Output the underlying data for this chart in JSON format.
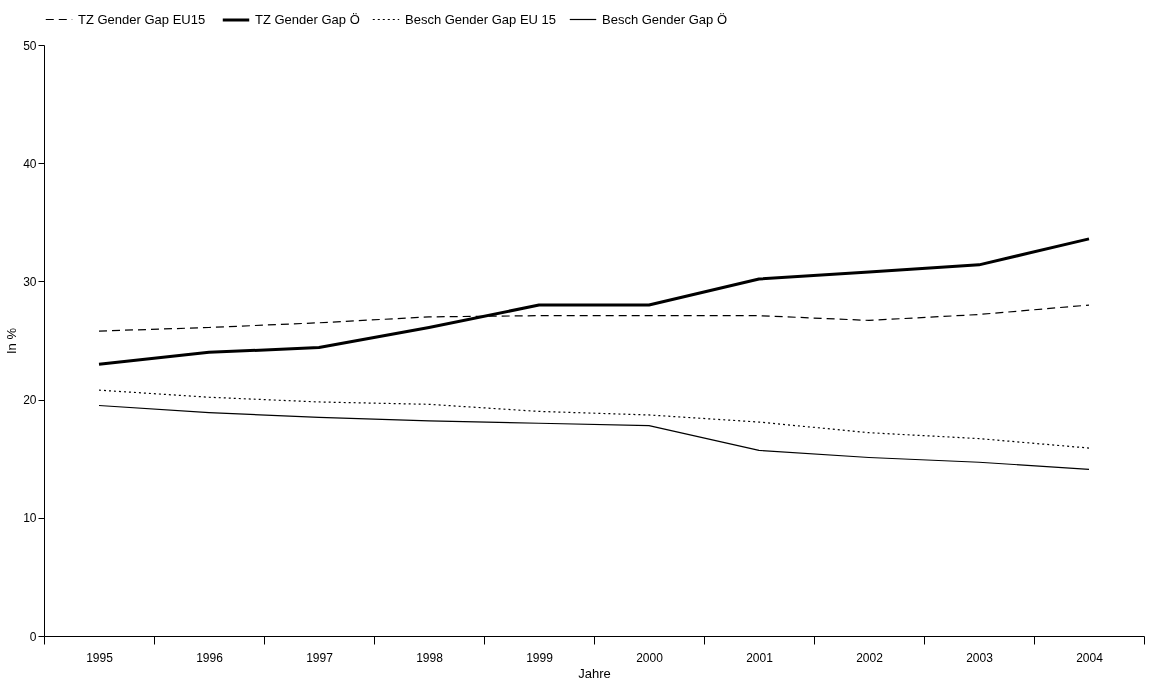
{
  "chart_data": {
    "type": "line",
    "xlabel": "Jahre",
    "ylabel": "In %",
    "categories": [
      "1995",
      "1996",
      "1997",
      "1998",
      "1999",
      "2000",
      "2001",
      "2002",
      "2003",
      "2004"
    ],
    "series": [
      {
        "name": "TZ Gender Gap EU15",
        "color": "#000000",
        "line_style": "dashed",
        "values": [
          25.8,
          26.1,
          26.5,
          27.0,
          27.1,
          27.1,
          27.1,
          26.7,
          27.2,
          28.0
        ]
      },
      {
        "name": "TZ Gender Gap Ö",
        "color": "#000000",
        "line_style": "solid",
        "values": [
          23.0,
          24.0,
          24.4,
          26.1,
          28.0,
          28.0,
          30.2,
          30.8,
          31.4,
          33.6
        ]
      },
      {
        "name": "Besch Gender Gap EU 15",
        "color": "#000000",
        "line_style": "dotted",
        "values": [
          20.8,
          20.2,
          19.8,
          19.6,
          19.0,
          18.7,
          18.1,
          17.2,
          16.7,
          15.9
        ]
      },
      {
        "name": "Besch Gender Gap Ö",
        "color": "#000000",
        "line_style": "solid",
        "values": [
          19.5,
          18.9,
          18.5,
          18.2,
          18.0,
          17.8,
          15.7,
          15.1,
          14.7,
          14.1
        ]
      }
    ],
    "ylim": [
      0,
      50
    ],
    "yticks": [
      0,
      10,
      20,
      30,
      40,
      50
    ],
    "grid": false,
    "legend": "top",
    "marker": "none"
  }
}
